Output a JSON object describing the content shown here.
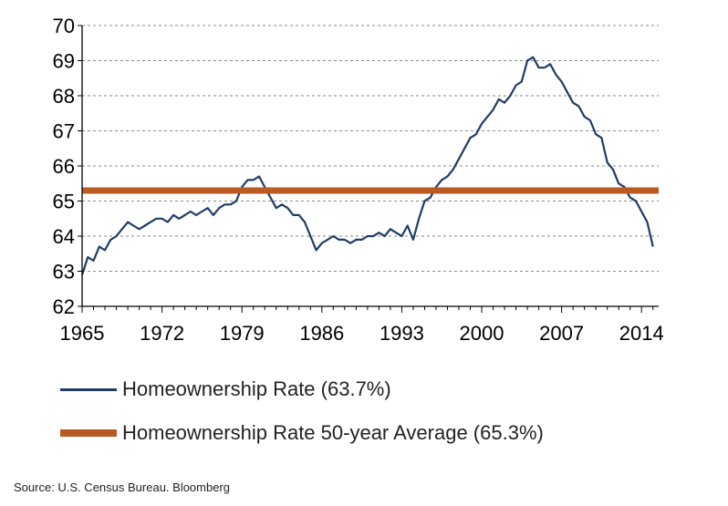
{
  "chart_data": {
    "type": "line",
    "title": "",
    "xlabel": "",
    "ylabel": "",
    "xlim": [
      1965,
      2015.5
    ],
    "ylim": [
      62,
      70
    ],
    "x_ticks": [
      "1965",
      "1972",
      "1979",
      "1986",
      "1993",
      "2000",
      "2007",
      "2014"
    ],
    "y_ticks": [
      "62",
      "63",
      "64",
      "65",
      "66",
      "67",
      "68",
      "69",
      "70"
    ],
    "grid": "horizontal dashed",
    "legend_placement": "bottom",
    "series": [
      {
        "name": "Homeownership Rate (63.7%)",
        "color": "#1f3c66",
        "x": [
          1965,
          1965.5,
          1966,
          1966.5,
          1967,
          1967.5,
          1968,
          1968.5,
          1969,
          1969.5,
          1970,
          1970.5,
          1971,
          1971.5,
          1972,
          1972.5,
          1973,
          1973.5,
          1974,
          1974.5,
          1975,
          1975.5,
          1976,
          1976.5,
          1977,
          1977.5,
          1978,
          1978.5,
          1979,
          1979.5,
          1980,
          1980.5,
          1981,
          1981.5,
          1982,
          1982.5,
          1983,
          1983.5,
          1984,
          1984.5,
          1985,
          1985.5,
          1986,
          1986.5,
          1987,
          1987.5,
          1988,
          1988.5,
          1989,
          1989.5,
          1990,
          1990.5,
          1991,
          1991.5,
          1992,
          1992.5,
          1993,
          1993.5,
          1994,
          1994.5,
          1995,
          1995.5,
          1996,
          1996.5,
          1997,
          1997.5,
          1998,
          1998.5,
          1999,
          1999.5,
          2000,
          2000.5,
          2001,
          2001.5,
          2002,
          2002.5,
          2003,
          2003.5,
          2004,
          2004.5,
          2005,
          2005.5,
          2006,
          2006.5,
          2007,
          2007.5,
          2008,
          2008.5,
          2009,
          2009.5,
          2010,
          2010.5,
          2011,
          2011.5,
          2012,
          2012.5,
          2013,
          2013.5,
          2014,
          2014.5,
          2015
        ],
        "y": [
          62.9,
          63.4,
          63.3,
          63.7,
          63.6,
          63.9,
          64.0,
          64.2,
          64.4,
          64.3,
          64.2,
          64.3,
          64.4,
          64.5,
          64.5,
          64.4,
          64.6,
          64.5,
          64.6,
          64.7,
          64.6,
          64.7,
          64.8,
          64.6,
          64.8,
          64.9,
          64.9,
          65.0,
          65.4,
          65.6,
          65.6,
          65.7,
          65.4,
          65.1,
          64.8,
          64.9,
          64.8,
          64.6,
          64.6,
          64.4,
          64.0,
          63.6,
          63.8,
          63.9,
          64.0,
          63.9,
          63.9,
          63.8,
          63.9,
          63.9,
          64.0,
          64.0,
          64.1,
          64.0,
          64.2,
          64.1,
          64.0,
          64.3,
          63.9,
          64.5,
          65.0,
          65.1,
          65.4,
          65.6,
          65.7,
          65.9,
          66.2,
          66.5,
          66.8,
          66.9,
          67.2,
          67.4,
          67.6,
          67.9,
          67.8,
          68.0,
          68.3,
          68.4,
          69.0,
          69.1,
          68.8,
          68.8,
          68.9,
          68.6,
          68.4,
          68.1,
          67.8,
          67.7,
          67.4,
          67.3,
          66.9,
          66.8,
          66.1,
          65.9,
          65.5,
          65.4,
          65.1,
          65.0,
          64.7,
          64.4,
          63.7
        ]
      },
      {
        "name": "Homeownership Rate 50-year Average (65.3%)",
        "color": "#b85a22",
        "x": [
          1965,
          2015.5
        ],
        "y": [
          65.3,
          65.3
        ]
      }
    ]
  },
  "source": "Source: U.S. Census Bureau. Bloomberg"
}
